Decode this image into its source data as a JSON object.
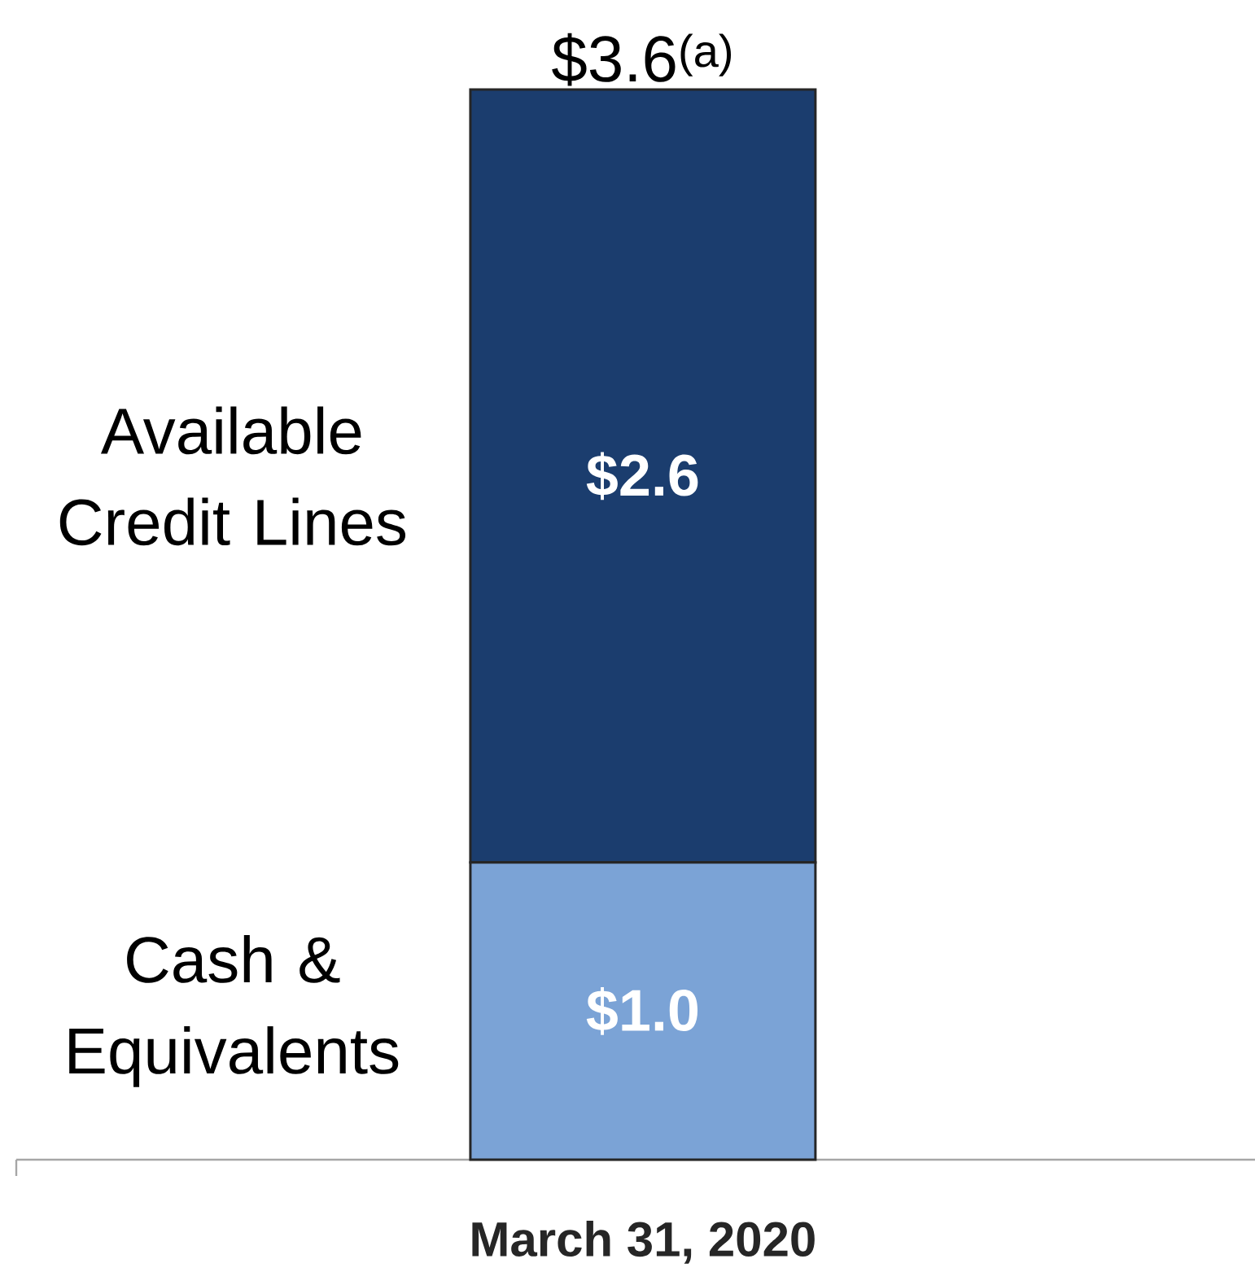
{
  "chart_data": {
    "type": "bar",
    "stacked": true,
    "categories": [
      "March 31, 2020"
    ],
    "series": [
      {
        "name": "Cash & Equivalents",
        "color": "#7ba3d6",
        "values": [
          1.0
        ],
        "value_labels": [
          "$1.0"
        ]
      },
      {
        "name": "Available Credit Lines",
        "color": "#1b3d6e",
        "values": [
          2.6
        ],
        "value_labels": [
          "$2.6"
        ]
      }
    ],
    "totals": [
      "$3.6$^{(a)}$"
    ]
  }
}
